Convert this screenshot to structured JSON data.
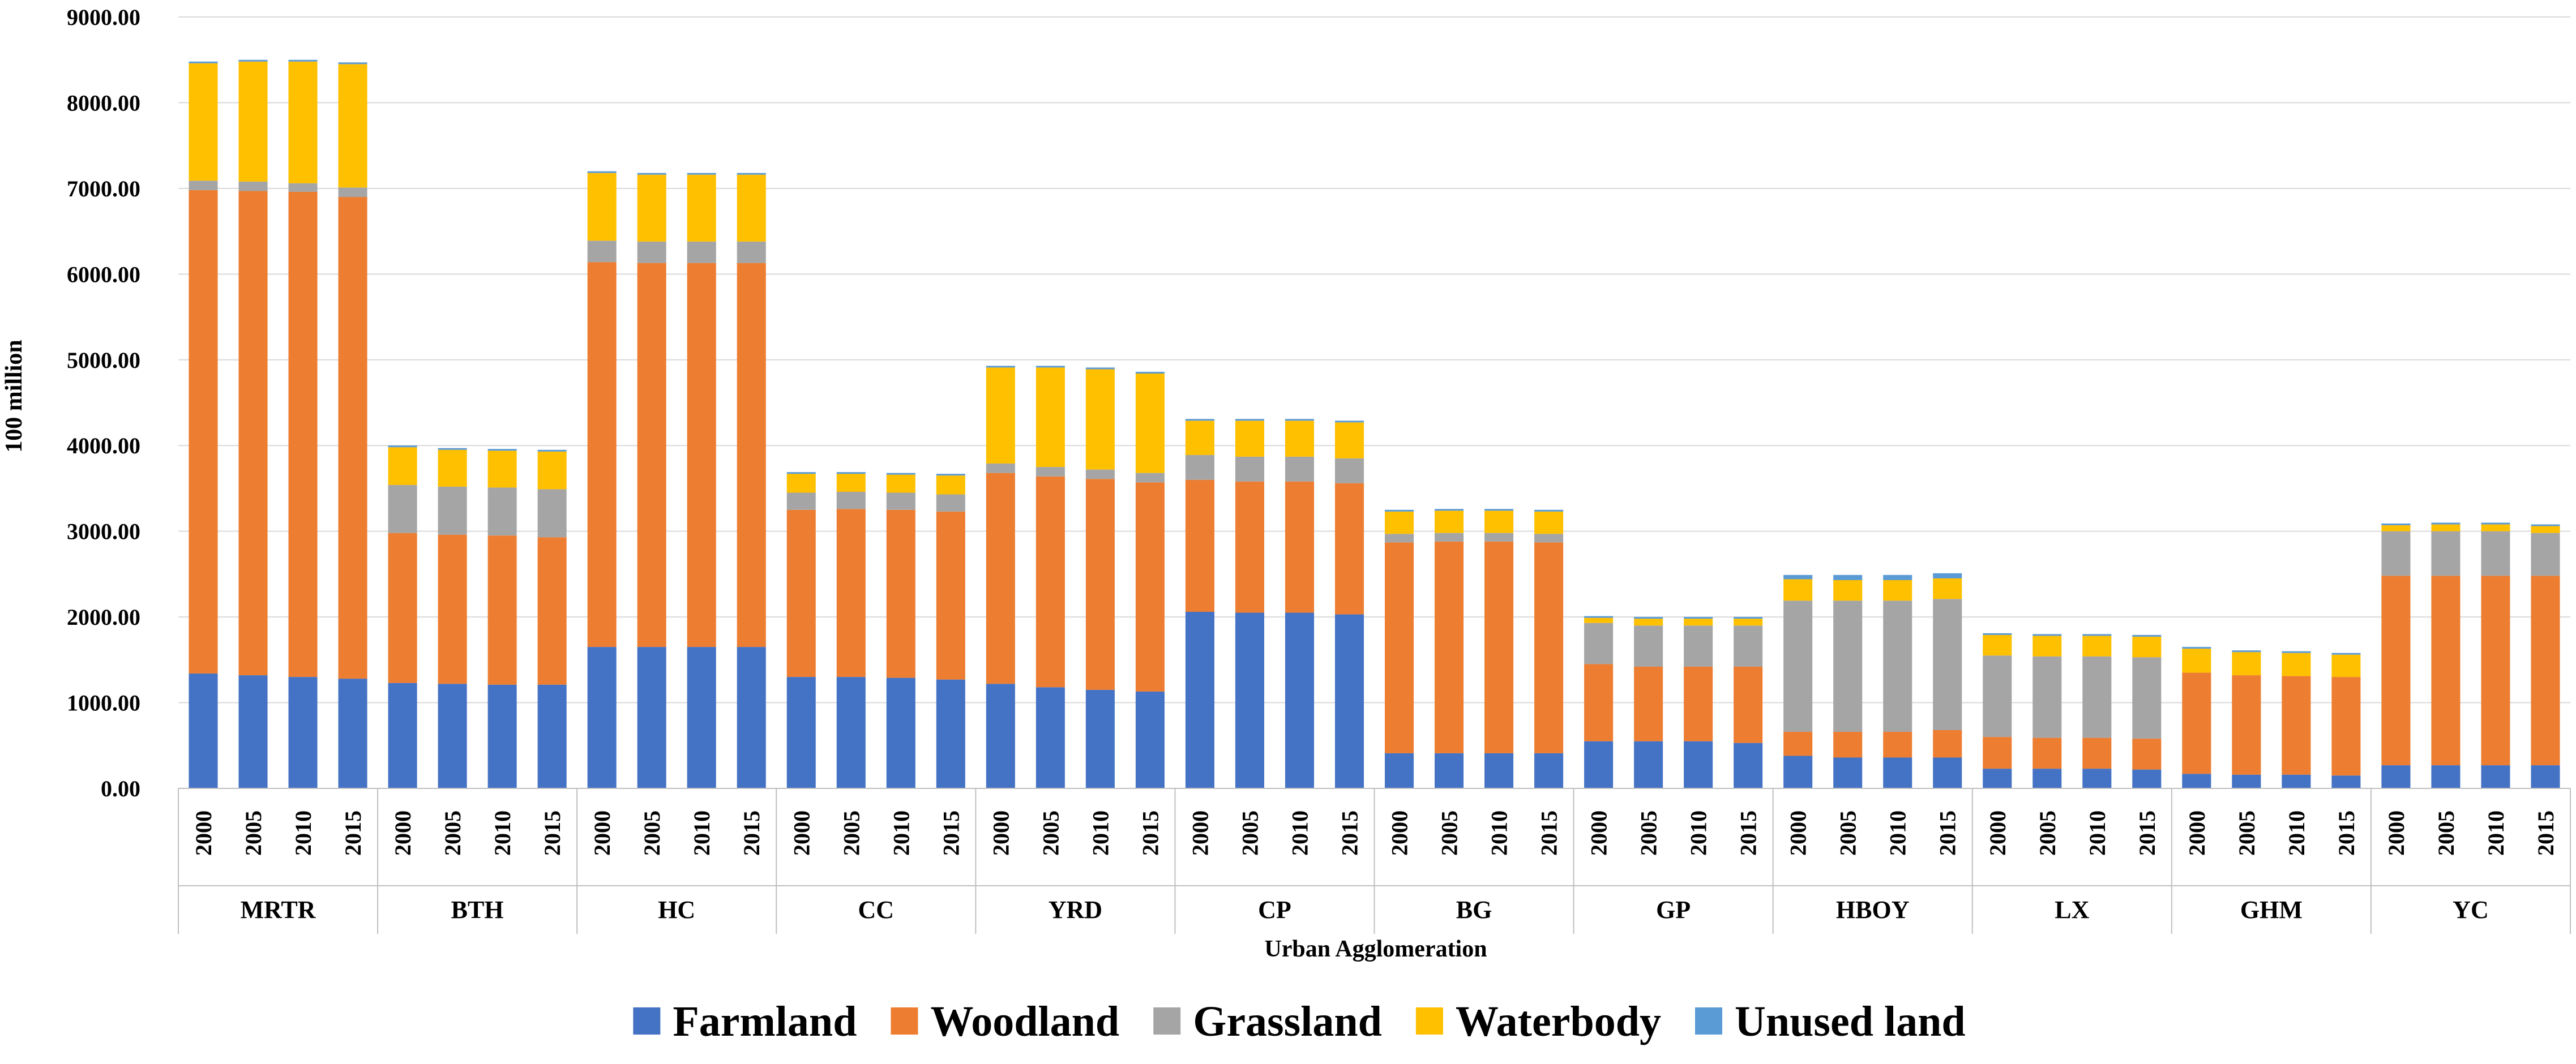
{
  "chart_data": {
    "type": "bar",
    "stacked": true,
    "title": "",
    "xlabel": "Urban Agglomeration",
    "ylabel": "100 million",
    "ylim": [
      0,
      9000
    ],
    "yticks": [
      "0.00",
      "1000.00",
      "2000.00",
      "3000.00",
      "4000.00",
      "5000.00",
      "6000.00",
      "7000.00",
      "8000.00",
      "9000.00"
    ],
    "grid": true,
    "legend_position": "bottom",
    "years": [
      "2000",
      "2005",
      "2010",
      "2015"
    ],
    "groups": [
      "MRTR",
      "BTH",
      "HC",
      "CC",
      "YRD",
      "CP",
      "BG",
      "GP",
      "HBOY",
      "LX",
      "GHM",
      "YC"
    ],
    "series": [
      {
        "name": "Farmland",
        "color": "#4472C4",
        "values": [
          1340,
          1320,
          1300,
          1280,
          1230,
          1220,
          1210,
          1210,
          1650,
          1650,
          1650,
          1650,
          1300,
          1300,
          1290,
          1270,
          1220,
          1180,
          1150,
          1130,
          2060,
          2050,
          2050,
          2030,
          410,
          410,
          410,
          410,
          550,
          550,
          550,
          530,
          380,
          360,
          360,
          360,
          230,
          230,
          230,
          220,
          170,
          160,
          160,
          150,
          270,
          270,
          270,
          270
        ]
      },
      {
        "name": "Woodland",
        "color": "#ED7D31",
        "values": [
          5640,
          5650,
          5660,
          5620,
          1750,
          1740,
          1740,
          1720,
          4490,
          4480,
          4480,
          4480,
          1950,
          1960,
          1960,
          1960,
          2460,
          2460,
          2460,
          2440,
          1540,
          1530,
          1530,
          1530,
          2460,
          2470,
          2470,
          2460,
          900,
          870,
          870,
          890,
          280,
          300,
          300,
          320,
          370,
          360,
          360,
          360,
          1180,
          1160,
          1150,
          1150,
          2210,
          2210,
          2210,
          2210
        ]
      },
      {
        "name": "Grassland",
        "color": "#A5A5A5",
        "values": [
          110,
          110,
          100,
          110,
          560,
          560,
          560,
          560,
          250,
          250,
          250,
          250,
          200,
          200,
          200,
          200,
          110,
          110,
          110,
          110,
          290,
          290,
          290,
          290,
          100,
          100,
          100,
          100,
          480,
          480,
          480,
          480,
          1530,
          1530,
          1530,
          1530,
          950,
          950,
          950,
          950,
          0,
          0,
          0,
          0,
          520,
          520,
          520,
          500
        ]
      },
      {
        "name": "Waterbody",
        "color": "#FFC000",
        "values": [
          1370,
          1400,
          1420,
          1440,
          440,
          430,
          430,
          440,
          790,
          780,
          780,
          780,
          220,
          210,
          210,
          220,
          1120,
          1160,
          1170,
          1160,
          400,
          420,
          420,
          420,
          260,
          260,
          260,
          260,
          60,
          80,
          80,
          80,
          250,
          240,
          240,
          240,
          240,
          240,
          240,
          240,
          280,
          270,
          270,
          260,
          70,
          80,
          80,
          80
        ]
      },
      {
        "name": "Unused land",
        "color": "#5B9BD5",
        "values": [
          20,
          20,
          20,
          20,
          20,
          20,
          20,
          20,
          20,
          20,
          20,
          20,
          20,
          20,
          20,
          20,
          20,
          20,
          20,
          20,
          20,
          20,
          20,
          20,
          20,
          20,
          20,
          20,
          20,
          20,
          20,
          20,
          50,
          60,
          60,
          60,
          20,
          20,
          20,
          20,
          20,
          20,
          20,
          20,
          20,
          20,
          20,
          20
        ]
      }
    ]
  }
}
